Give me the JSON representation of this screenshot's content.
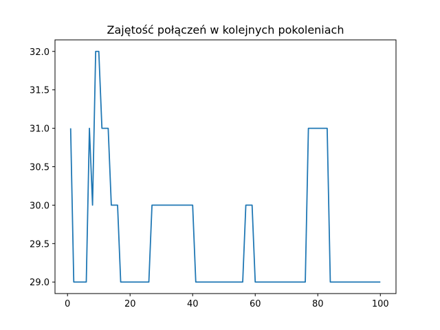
{
  "chart_data": {
    "type": "line",
    "title": "Zajętość połączeń w kolejnych pokoleniach",
    "xlabel": "",
    "ylabel": "",
    "xlim": [
      -4,
      105
    ],
    "ylim": [
      28.85,
      32.15
    ],
    "xticks": [
      0,
      20,
      40,
      60,
      80,
      100
    ],
    "xtick_labels": [
      "0",
      "20",
      "40",
      "60",
      "80",
      "100"
    ],
    "yticks": [
      29.0,
      29.5,
      30.0,
      30.5,
      31.0,
      31.5,
      32.0
    ],
    "ytick_labels": [
      "29.0",
      "29.5",
      "30.0",
      "30.5",
      "31.0",
      "31.5",
      "32.0"
    ],
    "grid": false,
    "line_color": "#1f77b4",
    "series": [
      {
        "x": [
          1,
          2,
          3,
          4,
          5,
          6,
          7,
          8,
          9,
          10,
          11,
          12,
          13,
          14,
          15,
          16,
          17,
          18,
          19,
          20,
          21,
          22,
          23,
          24,
          25,
          26,
          27,
          28,
          29,
          30,
          31,
          32,
          33,
          34,
          35,
          36,
          37,
          38,
          39,
          40,
          41,
          42,
          43,
          44,
          45,
          46,
          47,
          48,
          49,
          50,
          51,
          52,
          53,
          54,
          55,
          56,
          57,
          58,
          59,
          60,
          61,
          62,
          63,
          64,
          65,
          66,
          67,
          68,
          69,
          70,
          71,
          72,
          73,
          74,
          75,
          76,
          77,
          78,
          79,
          80,
          81,
          82,
          83,
          84,
          85,
          86,
          87,
          88,
          89,
          90,
          91,
          92,
          93,
          94,
          95,
          96,
          97,
          98,
          99,
          100
        ],
        "values": [
          31,
          29,
          29,
          29,
          29,
          29,
          31,
          30,
          32,
          32,
          31,
          31,
          31,
          30,
          30,
          30,
          29,
          29,
          29,
          29,
          29,
          29,
          29,
          29,
          29,
          29,
          30,
          30,
          30,
          30,
          30,
          30,
          30,
          30,
          30,
          30,
          30,
          30,
          30,
          30,
          29,
          29,
          29,
          29,
          29,
          29,
          29,
          29,
          29,
          29,
          29,
          29,
          29,
          29,
          29,
          29,
          30,
          30,
          30,
          29,
          29,
          29,
          29,
          29,
          29,
          29,
          29,
          29,
          29,
          29,
          29,
          29,
          29,
          29,
          29,
          29,
          31,
          31,
          31,
          31,
          31,
          31,
          31,
          29,
          29,
          29,
          29,
          29,
          29,
          29,
          29,
          29,
          29,
          29,
          29,
          29,
          29,
          29,
          29,
          29
        ]
      }
    ]
  }
}
